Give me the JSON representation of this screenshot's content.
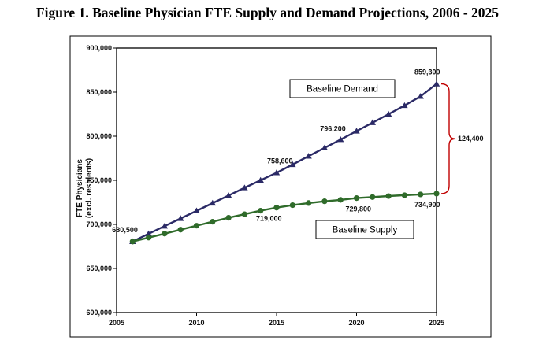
{
  "figure_title": "Figure 1. Baseline Physician FTE Supply and Demand Projections, 2006 - 2025",
  "colors": {
    "demand": "#2b2a66",
    "supply": "#2f6b2a",
    "brace": "#c00000",
    "frame": "#000000"
  },
  "chart_data": {
    "type": "line",
    "title": "Figure 1. Baseline Physician FTE Supply and Demand Projections, 2006 - 2025",
    "xlabel": "",
    "ylabel": [
      "FTE Physicians",
      "(excl. residents)"
    ],
    "xlim": [
      2005,
      2025
    ],
    "ylim": [
      600000,
      900000
    ],
    "x_ticks": [
      "2005",
      "2010",
      "2015",
      "2020",
      "2025"
    ],
    "y_ticks": [
      "600,000",
      "650,000",
      "700,000",
      "750,000",
      "800,000",
      "850,000",
      "900,000"
    ],
    "x_tick_values": [
      2005,
      2010,
      2015,
      2020,
      2025
    ],
    "y_tick_values": [
      600000,
      650000,
      700000,
      750000,
      800000,
      850000,
      900000
    ],
    "grid": false,
    "x": [
      2006,
      2007,
      2008,
      2009,
      2010,
      2011,
      2012,
      2013,
      2014,
      2015,
      2016,
      2017,
      2018,
      2019,
      2020,
      2021,
      2022,
      2023,
      2024,
      2025
    ],
    "series": [
      {
        "name": "Baseline Demand",
        "marker": "triangle",
        "values": [
          680500,
          689400,
          698000,
          706700,
          715400,
          724100,
          732800,
          741500,
          750100,
          758600,
          767900,
          777400,
          786800,
          796200,
          805800,
          815400,
          825000,
          834800,
          845200,
          859300
        ]
      },
      {
        "name": "Baseline Supply",
        "marker": "circle",
        "values": [
          680500,
          685000,
          689500,
          694000,
          698500,
          703000,
          707500,
          711500,
          715500,
          719000,
          721800,
          724200,
          726200,
          727800,
          729800,
          731000,
          732100,
          733100,
          734000,
          734900
        ]
      }
    ],
    "data_labels": [
      {
        "text": "680,500",
        "x": 2006,
        "y": 680500
      },
      {
        "text": "758,600",
        "x": 2015,
        "y": 758600
      },
      {
        "text": "796,200",
        "x": 2019,
        "y": 796200
      },
      {
        "text": "859,300",
        "x": 2025,
        "y": 859300
      },
      {
        "text": "719,000",
        "x": 2015,
        "y": 719000
      },
      {
        "text": "729,800",
        "x": 2020,
        "y": 729800
      },
      {
        "text": "734,900",
        "x": 2025,
        "y": 734900
      }
    ],
    "legend_boxes": [
      {
        "text": "Baseline Demand",
        "series": "Baseline Demand"
      },
      {
        "text": "Baseline Supply",
        "series": "Baseline Supply"
      }
    ],
    "gap_annotation": {
      "text": "124,400",
      "from": 734900,
      "to": 859300,
      "at_x": 2025
    }
  }
}
